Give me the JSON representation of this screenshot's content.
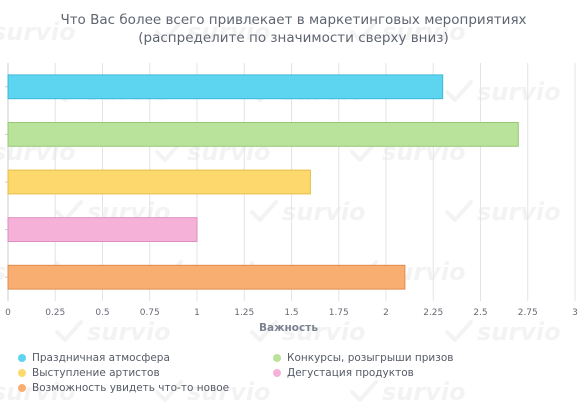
{
  "chart_data": {
    "type": "bar",
    "orientation": "horizontal",
    "title_lines": [
      "Что Вас более всего привлекает в маркетинговых мероприятиях",
      "(распределите по значимости сверху вниз)"
    ],
    "xlabel": "Важность",
    "ylabel": "",
    "xlim": [
      0,
      3
    ],
    "x_ticks": [
      "0",
      "0.25",
      "0.5",
      "0.75",
      "1",
      "1.25",
      "1.5",
      "1.75",
      "2",
      "2.25",
      "2.5",
      "2.75",
      "3"
    ],
    "grid": true,
    "legend_position": "bottom",
    "watermark": "survio",
    "series": [
      {
        "name": "Праздничная атмосфера",
        "value": 2.3,
        "color": "#5dd5f0",
        "border": "#3fb8d6"
      },
      {
        "name": "Конкурсы, розыгрыши призов",
        "value": 2.7,
        "color": "#b9e29a",
        "border": "#96c878"
      },
      {
        "name": "Выступление артистов",
        "value": 1.6,
        "color": "#fdd86c",
        "border": "#e6bd4a"
      },
      {
        "name": "Дегустация продуктов",
        "value": 1.0,
        "color": "#f6b1d9",
        "border": "#dd8fbe"
      },
      {
        "name": "Возможность увидеть что-то новое",
        "value": 2.1,
        "color": "#f9ae71",
        "border": "#e08c4d"
      }
    ]
  }
}
